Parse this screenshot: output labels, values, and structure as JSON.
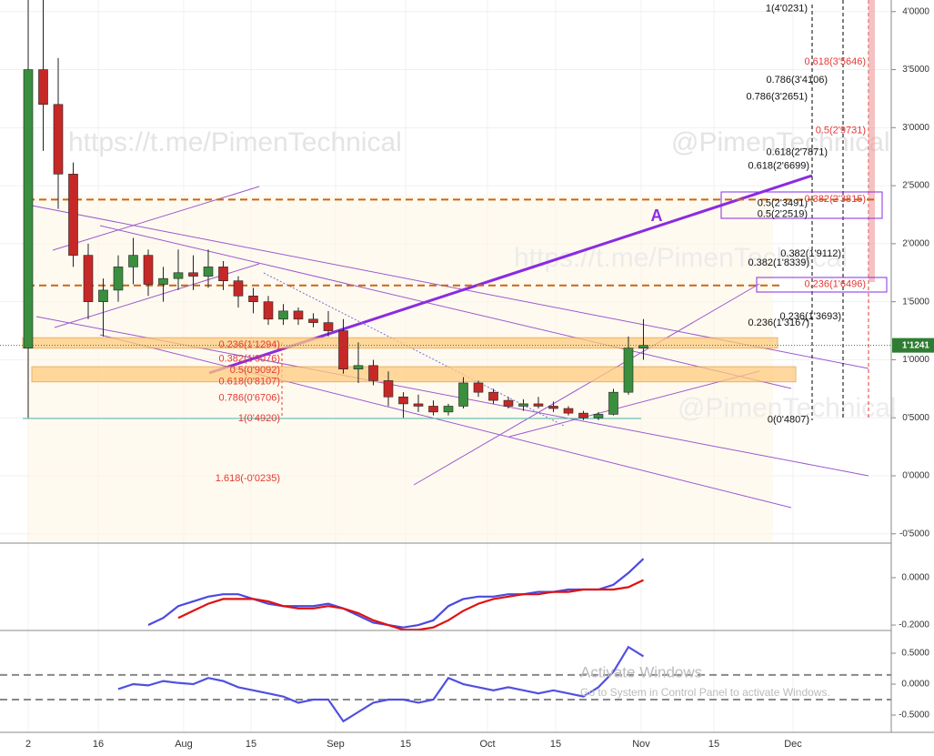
{
  "chart_data": {
    "type": "candlestick",
    "up_color": "#3a8f3e",
    "down_color": "#c62828",
    "open": [
      1.1,
      3.5,
      3.2,
      2.6,
      1.9,
      1.5,
      1.6,
      1.8,
      1.9,
      1.65,
      1.7,
      1.75,
      1.72,
      1.8,
      1.68,
      1.55,
      1.5,
      1.35,
      1.42,
      1.35,
      1.32,
      1.25,
      0.92,
      0.95,
      0.82,
      0.68,
      0.62,
      0.6,
      0.55,
      0.6,
      0.8,
      0.72,
      0.65,
      0.6,
      0.62,
      0.6,
      0.58,
      0.54,
      0.5,
      0.53,
      0.72,
      1.1
    ],
    "high": [
      4.1,
      4.1,
      3.6,
      2.7,
      2.0,
      1.7,
      1.9,
      2.05,
      1.95,
      1.8,
      1.95,
      1.9,
      1.95,
      1.85,
      1.72,
      1.62,
      1.55,
      1.48,
      1.45,
      1.4,
      1.42,
      1.35,
      1.15,
      1.0,
      0.9,
      0.72,
      0.7,
      0.65,
      0.62,
      0.85,
      0.82,
      0.75,
      0.68,
      0.66,
      0.68,
      0.64,
      0.6,
      0.56,
      0.55,
      0.75,
      1.2,
      1.35
    ],
    "low": [
      0.5,
      2.8,
      2.3,
      1.8,
      1.35,
      1.2,
      1.5,
      1.65,
      1.55,
      1.5,
      1.6,
      1.6,
      1.62,
      1.6,
      1.45,
      1.4,
      1.3,
      1.3,
      1.3,
      1.28,
      1.2,
      0.88,
      0.8,
      0.78,
      0.6,
      0.5,
      0.55,
      0.52,
      0.52,
      0.58,
      0.68,
      0.62,
      0.58,
      0.56,
      0.58,
      0.55,
      0.52,
      0.48,
      0.48,
      0.52,
      0.7,
      1.0
    ],
    "close": [
      3.5,
      3.2,
      2.6,
      1.9,
      1.5,
      1.6,
      1.8,
      1.9,
      1.65,
      1.7,
      1.75,
      1.72,
      1.8,
      1.68,
      1.55,
      1.5,
      1.35,
      1.42,
      1.35,
      1.32,
      1.25,
      0.92,
      0.95,
      0.82,
      0.68,
      0.62,
      0.6,
      0.55,
      0.6,
      0.8,
      0.72,
      0.65,
      0.6,
      0.62,
      0.6,
      0.58,
      0.54,
      0.5,
      0.53,
      0.72,
      1.1,
      1.124
    ],
    "ylim": [
      -0.58,
      4.1
    ],
    "yticks": [
      {
        "value": 4,
        "label": "4'0000"
      },
      {
        "value": 3.5,
        "label": "3'5000"
      },
      {
        "value": 3,
        "label": "3'0000"
      },
      {
        "value": 2.5,
        "label": "2'5000"
      },
      {
        "value": 2,
        "label": "2'0000"
      },
      {
        "value": 1.5,
        "label": "1'5000"
      },
      {
        "value": 1,
        "label": "1'0000"
      },
      {
        "value": 0.5,
        "label": "0'5000"
      },
      {
        "value": 0,
        "label": "0'0000"
      },
      {
        "value": -0.5,
        "label": "-0'5000"
      }
    ],
    "xtick_labels": [
      "2",
      "16",
      "Aug",
      "15",
      "Sep",
      "15",
      "Oct",
      "15",
      "Nov",
      "15",
      "Dec"
    ],
    "last_price": {
      "value": 1.1241,
      "label": "1'1241"
    },
    "levels": [
      2.38,
      1.64
    ],
    "zones": [
      [
        1.1,
        1.19
      ],
      [
        0.81,
        0.94
      ]
    ],
    "fib_left": [
      {
        "value": 1.1294,
        "label": "0.236(1'1294)"
      },
      {
        "value": 1.0076,
        "label": "0.382(1'0076)"
      },
      {
        "value": 0.9092,
        "label": "0.5(0'9092)"
      },
      {
        "value": 0.8107,
        "label": "0.618(0'8107)"
      },
      {
        "value": 0.6706,
        "label": "0.786(0'6706)"
      },
      {
        "value": 0.492,
        "label": "1(0'4920)"
      },
      {
        "value": -0.0235,
        "label": "1.618(-0'0235)"
      }
    ],
    "fib_right_black": [
      {
        "value": 4.0231,
        "label": "1(4'0231)"
      },
      {
        "value": 3.4106,
        "label": "0.786(3'4106)"
      },
      {
        "value": 3.2651,
        "label": "0.786(3'2651)"
      },
      {
        "value": 2.7871,
        "label": "0.618(2'7871)"
      },
      {
        "value": 2.6699,
        "label": "0.618(2'6699)"
      },
      {
        "value": 2.3491,
        "label": "0.5(2'3491)"
      },
      {
        "value": 2.2519,
        "label": "0.5(2'2519)"
      },
      {
        "value": 1.9112,
        "label": "0.382(1'9112)"
      },
      {
        "value": 1.8339,
        "label": "0.382(1'8339)"
      },
      {
        "value": 1.3693,
        "label": "0.236(1'3693)"
      },
      {
        "value": 1.3167,
        "label": "0.236(1'3167)"
      },
      {
        "value": 0.4807,
        "label": "0(0'4807)"
      }
    ],
    "fib_right_red": [
      {
        "value": 3.5646,
        "label": "0.618(3'5646)"
      },
      {
        "value": 2.9731,
        "label": "0.5(2'9731)"
      },
      {
        "value": 2.3815,
        "label": "0.382(2'3815)"
      },
      {
        "value": 1.6496,
        "label": "0.236(1'6496)"
      }
    ],
    "trend_label": "A",
    "watermarks": [
      "https://t.me/PimenTechnical",
      "@PimenTechnical"
    ],
    "notices": [
      "Activate Windows",
      "Go to System in Control Panel to activate Windows."
    ],
    "indicator1": {
      "ylim": [
        -0.219,
        0.142
      ],
      "yticks": [
        {
          "value": 0,
          "label": "0.0000"
        },
        {
          "value": -0.2,
          "label": "-0.2000"
        }
      ],
      "series": [
        {
          "color": "#4a4ae0",
          "values": [
            null,
            null,
            null,
            null,
            null,
            null,
            null,
            null,
            -0.2,
            -0.17,
            -0.12,
            -0.1,
            -0.08,
            -0.07,
            -0.07,
            -0.09,
            -0.11,
            -0.12,
            -0.12,
            -0.12,
            -0.11,
            -0.13,
            -0.16,
            -0.19,
            -0.2,
            -0.21,
            -0.2,
            -0.18,
            -0.12,
            -0.09,
            -0.08,
            -0.08,
            -0.07,
            -0.07,
            -0.06,
            -0.06,
            -0.05,
            -0.05,
            -0.05,
            -0.03,
            0.02,
            0.08
          ]
        },
        {
          "color": "#e01010",
          "values": [
            null,
            null,
            null,
            null,
            null,
            null,
            null,
            null,
            null,
            null,
            -0.17,
            -0.14,
            -0.11,
            -0.09,
            -0.09,
            -0.09,
            -0.1,
            -0.12,
            -0.13,
            -0.13,
            -0.12,
            -0.13,
            -0.15,
            -0.18,
            -0.2,
            -0.22,
            -0.22,
            -0.21,
            -0.18,
            -0.14,
            -0.11,
            -0.09,
            -0.08,
            -0.07,
            -0.07,
            -0.06,
            -0.06,
            -0.05,
            -0.05,
            -0.05,
            -0.04,
            -0.01
          ]
        }
      ]
    },
    "indicator2": {
      "ylim": [
        -0.779,
        0.853
      ],
      "yticks": [
        {
          "value": 0.5,
          "label": "0.5000"
        },
        {
          "value": 0,
          "label": "0.0000"
        },
        {
          "value": -0.5,
          "label": "-0.5000"
        }
      ],
      "levels": [
        0.15,
        -0.25
      ],
      "series": [
        {
          "color": "#5050e0",
          "values": [
            null,
            null,
            null,
            null,
            null,
            null,
            -0.08,
            0,
            -0.02,
            0.05,
            0.02,
            0,
            0.1,
            0.05,
            -0.05,
            -0.1,
            -0.15,
            -0.2,
            -0.3,
            -0.25,
            -0.25,
            -0.6,
            -0.45,
            -0.3,
            -0.25,
            -0.25,
            -0.3,
            -0.25,
            0.1,
            0,
            -0.05,
            -0.1,
            -0.05,
            -0.1,
            -0.15,
            -0.1,
            -0.15,
            -0.2,
            -0.05,
            0.2,
            0.6,
            0.45
          ]
        }
      ]
    }
  }
}
